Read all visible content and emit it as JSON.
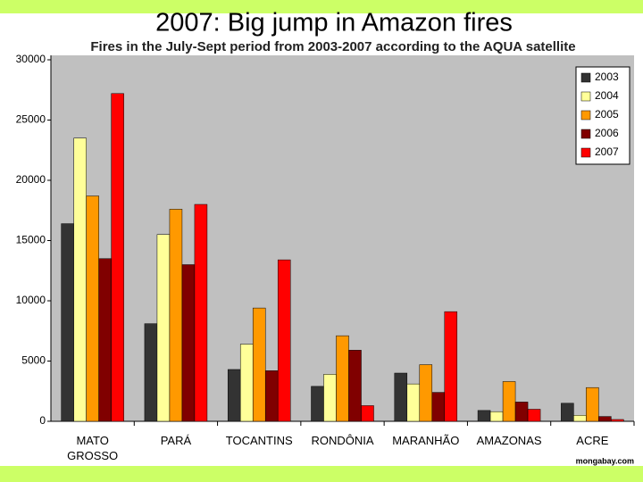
{
  "chart_data": {
    "type": "bar",
    "title": "2007: Big jump in Amazon fires",
    "subtitle": "Fires in the July-Sept period from 2003-2007 according to the AQUA satellite",
    "source": "mongabay.com",
    "categories": [
      "MATO GROSSO",
      "PARÁ",
      "TOCANTINS",
      "RONDÔNIA",
      "MARANHÃO",
      "AMAZONAS",
      "ACRE"
    ],
    "series": [
      {
        "name": "2003",
        "color": "#333333",
        "values": [
          16400,
          8100,
          4300,
          2900,
          4000,
          900,
          1500
        ]
      },
      {
        "name": "2004",
        "color": "#ffff99",
        "values": [
          23500,
          15500,
          6400,
          3900,
          3100,
          800,
          500
        ]
      },
      {
        "name": "2005",
        "color": "#ff9900",
        "values": [
          18700,
          17600,
          9400,
          7100,
          4700,
          3300,
          2800
        ]
      },
      {
        "name": "2006",
        "color": "#800000",
        "values": [
          13500,
          13000,
          4200,
          5900,
          2400,
          1600,
          400
        ]
      },
      {
        "name": "2007",
        "color": "#ff0000",
        "values": [
          27200,
          18000,
          13400,
          1300,
          9100,
          1000,
          150
        ]
      }
    ],
    "ylim": [
      0,
      30000
    ],
    "yticks": [
      0,
      5000,
      10000,
      15000,
      20000,
      25000,
      30000
    ],
    "legend": "top-right",
    "plot_background": "#c0c0c0"
  }
}
